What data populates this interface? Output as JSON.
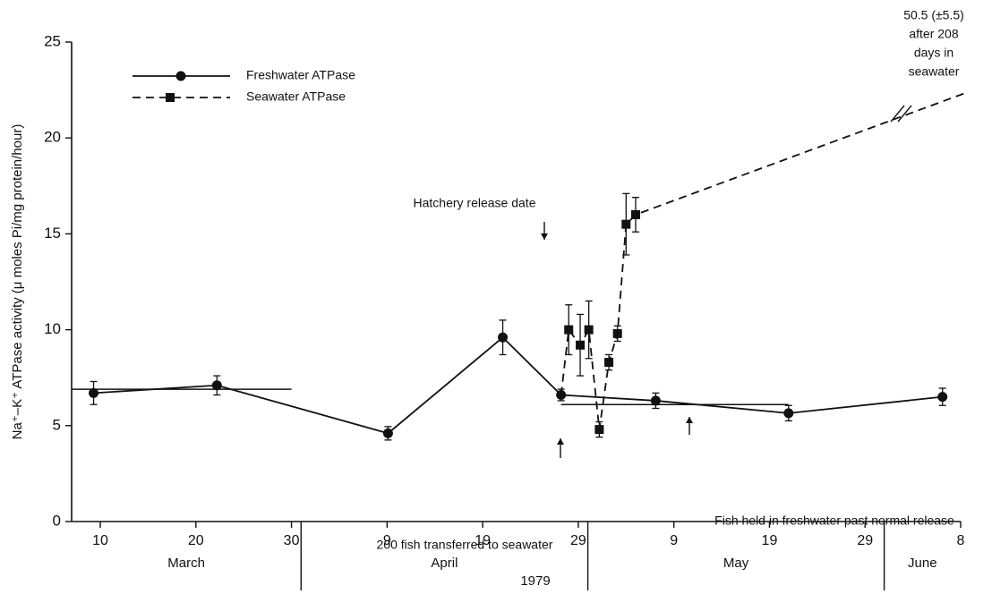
{
  "chart_data": {
    "type": "line",
    "y_label": "Na⁺–K⁺ ATPase activity (μ moles Pi/mg protein/hour)",
    "x_label": "1979",
    "xlim": [
      7,
      100
    ],
    "ylim": [
      0,
      25
    ],
    "yticks": [
      0,
      5,
      10,
      15,
      20,
      25
    ],
    "xticks": [
      {
        "value": 10,
        "label": "10"
      },
      {
        "value": 20,
        "label": "20"
      },
      {
        "value": 30,
        "label": "30"
      },
      {
        "value": 40,
        "label": "9"
      },
      {
        "value": 50,
        "label": "19"
      },
      {
        "value": 60,
        "label": "29"
      },
      {
        "value": 70,
        "label": "9"
      },
      {
        "value": 80,
        "label": "19"
      },
      {
        "value": 90,
        "label": "29"
      },
      {
        "value": 100,
        "label": "8"
      }
    ],
    "months": [
      {
        "label": "March",
        "from": 7,
        "to": 31
      },
      {
        "label": "April",
        "from": 31,
        "to": 61
      },
      {
        "label": "May",
        "from": 61,
        "to": 92
      },
      {
        "label": "June",
        "from": 92,
        "to": 100
      }
    ],
    "series": [
      {
        "name": "Freshwater ATPase",
        "color": "#111111",
        "dash": false,
        "marker": "circle",
        "x": [
          9.3,
          22.2,
          40.1,
          52.1,
          58.2,
          68.1,
          82,
          98.1
        ],
        "values": [
          6.7,
          7.1,
          4.6,
          9.6,
          6.6,
          6.3,
          5.65,
          6.5
        ],
        "errors": [
          0.6,
          0.5,
          0.35,
          0.9,
          0.3,
          0.4,
          0.4,
          0.45
        ]
      },
      {
        "name": "Seawater ATPase",
        "color": "#111111",
        "dash": true,
        "marker": "square",
        "x": [
          58.2,
          59,
          60.2,
          61.1,
          62.2,
          63.2,
          64.1,
          65,
          66,
          100.8
        ],
        "values": [
          6.6,
          10.0,
          9.2,
          10.0,
          4.8,
          8.3,
          9.8,
          15.5,
          16.0,
          22.4
        ],
        "errors": [
          null,
          1.3,
          1.6,
          1.5,
          0.4,
          0.4,
          0.4,
          1.6,
          0.9,
          null
        ]
      }
    ],
    "reference_lines": [
      {
        "x0": 7,
        "x1": 30,
        "y": 6.9
      },
      {
        "x0": 58.2,
        "x1": 82,
        "y": 6.1
      }
    ],
    "annotations": [
      "Hatchery release date",
      "200 fish transferred to seawater",
      "Fish held in freshwater past normal release"
    ],
    "note_lines": [
      "50.5 (±5.5)",
      "after 208",
      "days in",
      "seawater"
    ]
  }
}
